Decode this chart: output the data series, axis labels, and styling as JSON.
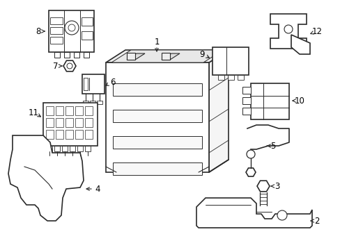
{
  "background_color": "#ffffff",
  "line_color": "#2a2a2a",
  "label_color": "#000000",
  "figure_width": 4.89,
  "figure_height": 3.6,
  "dpi": 100
}
